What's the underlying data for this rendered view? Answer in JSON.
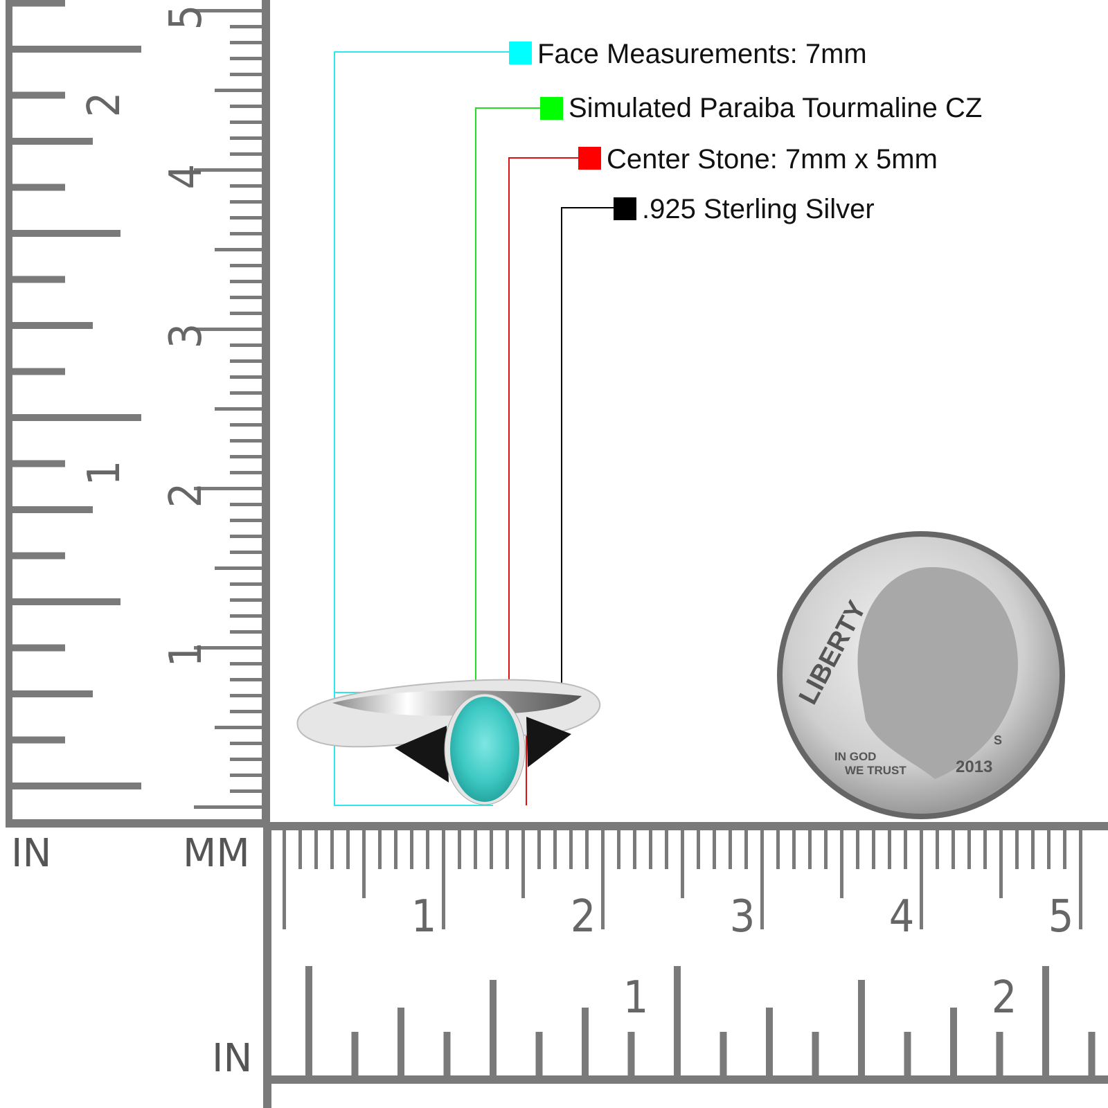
{
  "legend": [
    {
      "label": "Face Measurements: 7mm",
      "color": "#00ffff"
    },
    {
      "label": "Simulated Paraiba Tourmaline CZ",
      "color": "#00ff00"
    },
    {
      "label": "Center Stone: 7mm x 5mm",
      "color": "#ff0000"
    },
    {
      "label": ".925 Sterling Silver",
      "color": "#000000"
    }
  ],
  "rulers": {
    "corner_in_label": "IN",
    "corner_mm_label": "MM",
    "bottom_in_label": "IN",
    "mm_numbers": [
      "1",
      "2",
      "3",
      "4",
      "5"
    ],
    "in_numbers": [
      "1",
      "2"
    ],
    "color": "#7a7a7a"
  },
  "coin": {
    "lettering": {
      "liberty": "LIBERTY",
      "motto_1": "IN GOD",
      "motto_2": "WE TRUST",
      "year": "2013",
      "mint": "S"
    }
  },
  "product": {
    "stone_color": "#3ec9c4",
    "side_stone_color": "#111111",
    "metal_color": "#d9d9d9"
  }
}
